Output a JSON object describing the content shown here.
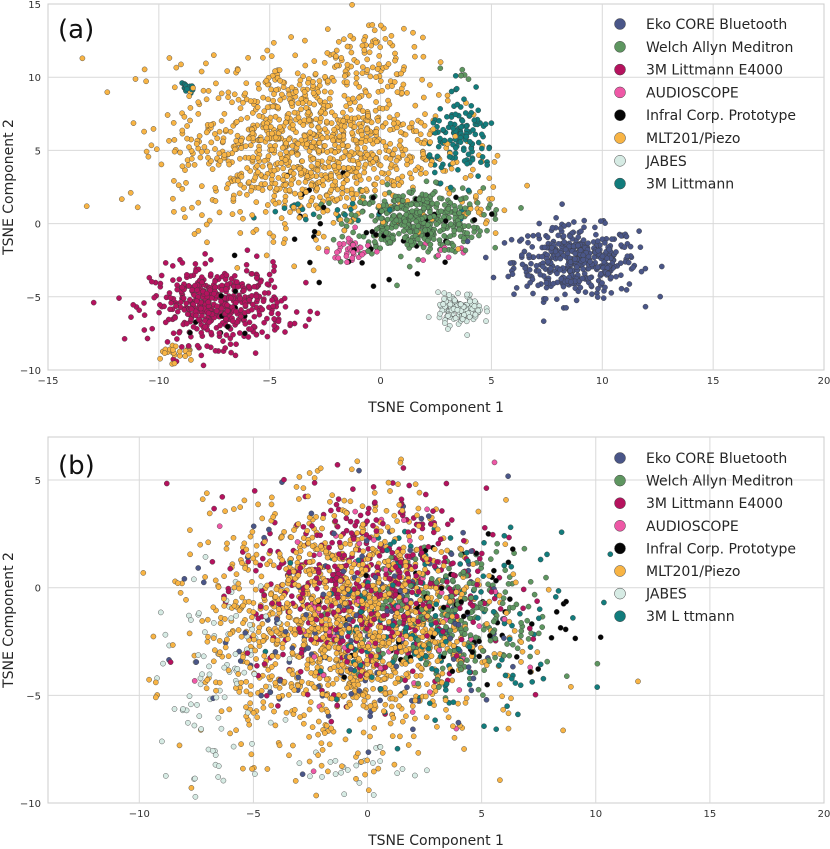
{
  "chart_data": [
    {
      "type": "scatter",
      "panel_label": "(a)",
      "xlabel": "TSNE Component 1",
      "ylabel": "TSNE Component 2",
      "xlim": [
        -15,
        20
      ],
      "ylim": [
        -10,
        15
      ],
      "xticks": [
        -15,
        -10,
        -5,
        0,
        5,
        10,
        15,
        20
      ],
      "yticks": [
        -10,
        -5,
        0,
        5,
        10,
        15
      ],
      "grid": true,
      "legend_position": "top-right",
      "series": [
        {
          "name": "Eko CORE Bluetooth",
          "color": "#4a5688",
          "clusters": [
            {
              "cx": 8.8,
              "cy": -2.6,
              "sx": 1.4,
              "sy": 1.2,
              "n": 420
            }
          ]
        },
        {
          "name": "Welch Allyn Meditron",
          "color": "#5e9660",
          "clusters": [
            {
              "cx": 1.6,
              "cy": 0.2,
              "sx": 1.5,
              "sy": 1.1,
              "n": 420
            },
            {
              "cx": 3.5,
              "cy": 10.2,
              "sx": 0.4,
              "sy": 0.3,
              "n": 6
            }
          ]
        },
        {
          "name": "3M Littmann E4000",
          "color": "#b5125e",
          "clusters": [
            {
              "cx": -7.3,
              "cy": -5.6,
              "sx": 1.5,
              "sy": 1.3,
              "n": 480
            }
          ]
        },
        {
          "name": "AUDIOSCOPE",
          "color": "#ee58a6",
          "clusters": [
            {
              "cx": -1.3,
              "cy": -1.8,
              "sx": 0.5,
              "sy": 0.6,
              "n": 35
            },
            {
              "cx": 2.5,
              "cy": -2.0,
              "sx": 0.6,
              "sy": 0.4,
              "n": 8
            }
          ]
        },
        {
          "name": "Infral Corp. Prototype",
          "color": "#050505",
          "clusters": [
            {
              "cx": -0.5,
              "cy": -0.7,
              "sx": 2.5,
              "sy": 1.6,
              "n": 38
            },
            {
              "cx": -7.0,
              "cy": -6.0,
              "sx": 1.2,
              "sy": 1.0,
              "n": 10
            }
          ]
        },
        {
          "name": "MLT201/Piezo",
          "color": "#f8b444",
          "clusters": [
            {
              "cx": -3.3,
              "cy": 5.4,
              "sx": 3.0,
              "sy": 2.8,
              "n": 1100
            },
            {
              "cx": -0.8,
              "cy": 11.5,
              "sx": 1.1,
              "sy": 1.4,
              "n": 80
            },
            {
              "cx": -9.3,
              "cy": -8.8,
              "sx": 0.45,
              "sy": 0.4,
              "n": 24
            },
            {
              "cx": 4.3,
              "cy": 1.5,
              "sx": 0.5,
              "sy": 1.0,
              "n": 18
            }
          ]
        },
        {
          "name": "JABES",
          "color": "#d6ebe4",
          "clusters": [
            {
              "cx": 3.6,
              "cy": -5.9,
              "sx": 0.5,
              "sy": 0.55,
              "n": 120
            }
          ]
        },
        {
          "name": "3M Littmann",
          "color": "#127c7c",
          "clusters": [
            {
              "cx": 3.7,
              "cy": 5.8,
              "sx": 0.75,
              "sy": 1.3,
              "n": 130
            },
            {
              "cx": -8.7,
              "cy": 9.2,
              "sx": 0.2,
              "sy": 0.2,
              "n": 18
            },
            {
              "cx": -2.0,
              "cy": 0.7,
              "sx": 2.5,
              "sy": 0.6,
              "n": 22
            }
          ]
        }
      ]
    },
    {
      "type": "scatter",
      "panel_label": "(b)",
      "xlabel": "TSNE Component 1",
      "ylabel": "TSNE Component 2",
      "xlim": [
        -14,
        20
      ],
      "ylim": [
        -10,
        7
      ],
      "xticks": [
        -10,
        -5,
        0,
        5,
        10,
        15,
        20
      ],
      "yticks": [
        -10,
        -5,
        0,
        5
      ],
      "grid": true,
      "legend_position": "top-right",
      "series": [
        {
          "name": "Eko CORE Bluetooth",
          "color": "#4a5688",
          "clusters": [
            {
              "cx": 0.0,
              "cy": -1.5,
              "sx": 3.2,
              "sy": 2.8,
              "n": 140
            }
          ]
        },
        {
          "name": "Welch Allyn Meditron",
          "color": "#5e9660",
          "clusters": [
            {
              "cx": 4.0,
              "cy": -1.5,
              "sx": 2.0,
              "sy": 1.5,
              "n": 260
            }
          ]
        },
        {
          "name": "3M Littmann E4000",
          "color": "#b5125e",
          "clusters": [
            {
              "cx": 0.0,
              "cy": 0.0,
              "sx": 2.6,
              "sy": 2.3,
              "n": 520
            }
          ]
        },
        {
          "name": "AUDIOSCOPE",
          "color": "#ee58a6",
          "clusters": [
            {
              "cx": 0.8,
              "cy": -1.0,
              "sx": 3.0,
              "sy": 2.5,
              "n": 60
            }
          ]
        },
        {
          "name": "Infral Corp. Prototype",
          "color": "#050505",
          "clusters": [
            {
              "cx": 4.0,
              "cy": -1.2,
              "sx": 2.5,
              "sy": 1.8,
              "n": 70
            }
          ]
        },
        {
          "name": "MLT201/Piezo",
          "color": "#f8b444",
          "clusters": [
            {
              "cx": -1.0,
              "cy": -1.8,
              "sx": 3.0,
              "sy": 2.8,
              "n": 1400
            }
          ]
        },
        {
          "name": "JABES",
          "color": "#d6ebe4",
          "clusters": [
            {
              "cx": -6.5,
              "cy": -4.5,
              "sx": 1.2,
              "sy": 2.4,
              "n": 90
            },
            {
              "cx": -0.5,
              "cy": -8.5,
              "sx": 1.5,
              "sy": 0.5,
              "n": 25
            }
          ]
        },
        {
          "name": "3M L ttmann",
          "color": "#127c7c",
          "clusters": [
            {
              "cx": 3.2,
              "cy": -1.5,
              "sx": 3.0,
              "sy": 2.2,
              "n": 170
            }
          ]
        }
      ]
    }
  ]
}
